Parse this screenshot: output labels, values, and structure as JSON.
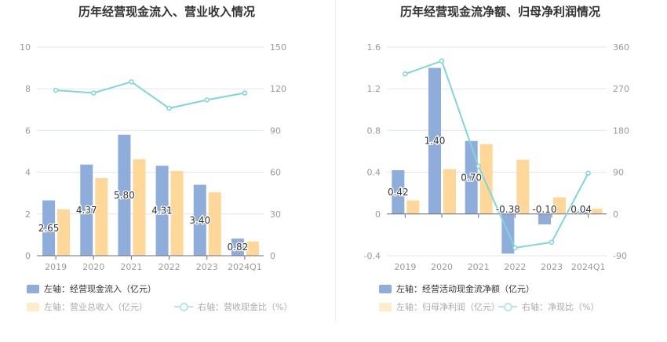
{
  "colors": {
    "bar1": "#8eaddb",
    "bar2": "#ffd899",
    "line": "#7fd6d9",
    "grid": "#e0e6f1",
    "axis": "#999"
  },
  "chart_data": [
    {
      "type": "bar+line",
      "title": "历年经营现金流入、营业收入情况",
      "categories": [
        "2019",
        "2020",
        "2021",
        "2022",
        "2023",
        "2024Q1"
      ],
      "left_axis": {
        "ylim": [
          0,
          10
        ],
        "ticks": [
          "0",
          "2",
          "4",
          "6",
          "8",
          "10"
        ]
      },
      "right_axis": {
        "ylim": [
          0,
          150
        ],
        "ticks": [
          "0",
          "30",
          "60",
          "90",
          "120",
          "150"
        ]
      },
      "series": [
        {
          "name": "左轴：经营现金流入（亿元）",
          "type": "bar",
          "axis": "left",
          "values": [
            2.65,
            4.37,
            5.8,
            4.31,
            3.4,
            0.82
          ],
          "labels": [
            "2.65",
            "4.37",
            "5.80",
            "4.31",
            "3.40",
            "0.82"
          ]
        },
        {
          "name": "左轴：营业总收入（亿元）",
          "type": "bar",
          "axis": "left",
          "values": [
            2.22,
            3.72,
            4.62,
            4.06,
            3.04,
            0.68
          ]
        },
        {
          "name": "右轴：营收现金比（%）",
          "type": "line",
          "axis": "right",
          "values": [
            119,
            117,
            125,
            106,
            112,
            117
          ]
        }
      ]
    },
    {
      "type": "bar+line",
      "title": "历年经营现金流净额、归母净利润情况",
      "categories": [
        "2019",
        "2020",
        "2021",
        "2022",
        "2023",
        "2024Q1"
      ],
      "left_axis": {
        "ylim": [
          -0.4,
          1.6
        ],
        "ticks": [
          "-0.4",
          "0",
          "0.4",
          "0.8",
          "1.2",
          "1.6"
        ]
      },
      "right_axis": {
        "ylim": [
          -90,
          360
        ],
        "ticks": [
          "-90",
          "0",
          "90",
          "180",
          "270",
          "360"
        ]
      },
      "series": [
        {
          "name": "左轴：经营活动现金流净额（亿元）",
          "type": "bar",
          "axis": "left",
          "values": [
            0.42,
            1.4,
            0.7,
            -0.38,
            -0.1,
            0.04
          ],
          "labels": [
            "0.42",
            "1.40",
            "0.70",
            "-0.38",
            "-0.10",
            "0.04"
          ]
        },
        {
          "name": "左轴：归母净利润（亿元）",
          "type": "bar",
          "axis": "left",
          "values": [
            0.13,
            0.43,
            0.67,
            0.52,
            0.16,
            0.05
          ]
        },
        {
          "name": "右轴：净现比（%）",
          "type": "line",
          "axis": "right",
          "values": [
            302,
            330,
            103,
            -73,
            -61,
            88
          ]
        }
      ]
    }
  ]
}
